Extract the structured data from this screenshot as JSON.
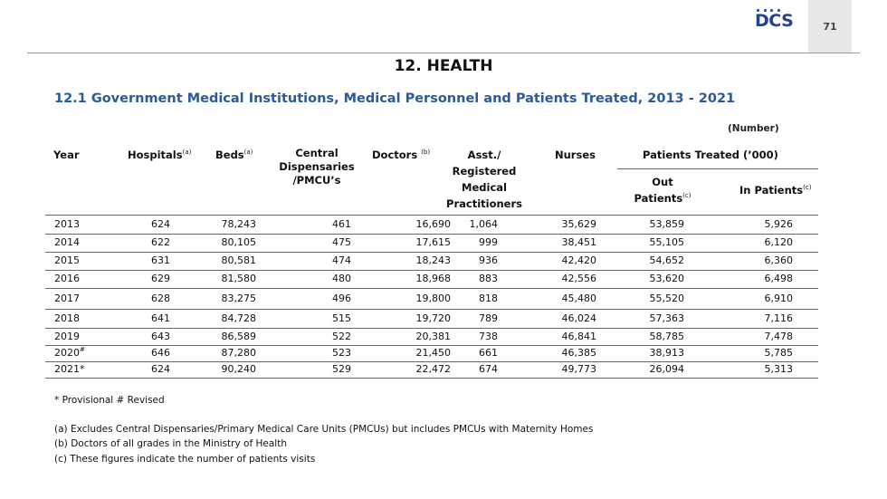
{
  "page": {
    "number": "71",
    "logo_text": "DCS",
    "chapter_title": "12. HEALTH",
    "table_title": "12.1 Government Medical Institutions, Medical Personnel and Patients Treated, 2013 - 2021",
    "unit_note": "(Number)"
  },
  "table": {
    "headers": {
      "year": "Year",
      "hospitals": "Hospitals",
      "hospitals_sup": "(a)",
      "beds": "Beds",
      "beds_sup": "(a)",
      "central_1": "Central",
      "central_2": "Dispensaries",
      "central_3": "/PMCU’s",
      "doctors": "Doctors",
      "doctors_sup": "(b)",
      "asst_1": "Asst./",
      "asst_2": "Registered",
      "asst_3": "Medical",
      "asst_4": "Practitioners",
      "nurses": "Nurses",
      "patients_group": "Patients Treated (’000)",
      "out_1": "Out",
      "out_2": "Patients",
      "out_sup": "(c)",
      "in": "In Patients",
      "in_sup": "(c)"
    },
    "rows": [
      {
        "year": "2013",
        "mark": "",
        "hospitals": "624",
        "beds": "78,243",
        "central": "461",
        "doctors": "16,690",
        "asst": "1,064",
        "nurses": "35,629",
        "out": "53,859",
        "in": "5,926"
      },
      {
        "year": "2014",
        "mark": "",
        "hospitals": "622",
        "beds": "80,105",
        "central": "475",
        "doctors": "17,615",
        "asst": "999",
        "nurses": "38,451",
        "out": "55,105",
        "in": "6,120"
      },
      {
        "year": "2015",
        "mark": "",
        "hospitals": "631",
        "beds": "80,581",
        "central": "474",
        "doctors": "18,243",
        "asst": "936",
        "nurses": "42,420",
        "out": "54,652",
        "in": "6,360"
      },
      {
        "year": "2016",
        "mark": "",
        "hospitals": "629",
        "beds": "81,580",
        "central": "480",
        "doctors": "18,968",
        "asst": "883",
        "nurses": "42,556",
        "out": "53,620",
        "in": "6,498"
      },
      {
        "year": "2017",
        "mark": "",
        "hospitals": "628",
        "beds": "83,275",
        "central": "496",
        "doctors": "19,800",
        "asst": "818",
        "nurses": "45,480",
        "out": "55,520",
        "in": "6,910"
      },
      {
        "year": "2018",
        "mark": "",
        "hospitals": "641",
        "beds": "84,728",
        "central": "515",
        "doctors": "19,720",
        "asst": "789",
        "nurses": "46,024",
        "out": "57,363",
        "in": "7,116"
      },
      {
        "year": "2019",
        "mark": "",
        "hospitals": "643",
        "beds": "86,589",
        "central": "522",
        "doctors": "20,381",
        "asst": "738",
        "nurses": "46,841",
        "out": "58,785",
        "in": "7,478"
      },
      {
        "year": "2020",
        "mark": "#",
        "hospitals": "646",
        "beds": "87,280",
        "central": "523",
        "doctors": "21,450",
        "asst": "661",
        "nurses": "46,385",
        "out": "38,913",
        "in": "5,785"
      },
      {
        "year": "2021*",
        "mark": "",
        "hospitals": "624",
        "beds": "90,240",
        "central": "529",
        "doctors": "22,472",
        "asst": "674",
        "nurses": "49,773",
        "out": "26,094",
        "in": "5,313"
      }
    ]
  },
  "notes": {
    "legend": "* Provisional   # Revised",
    "a": "(a) Excludes Central Dispensaries/Primary Medical Care Units (PMCUs) but includes PMCUs with Maternity Homes",
    "b": "(b) Doctors of all grades in the Ministry of Health",
    "c": "(c) These figures indicate the number of patients visits"
  }
}
